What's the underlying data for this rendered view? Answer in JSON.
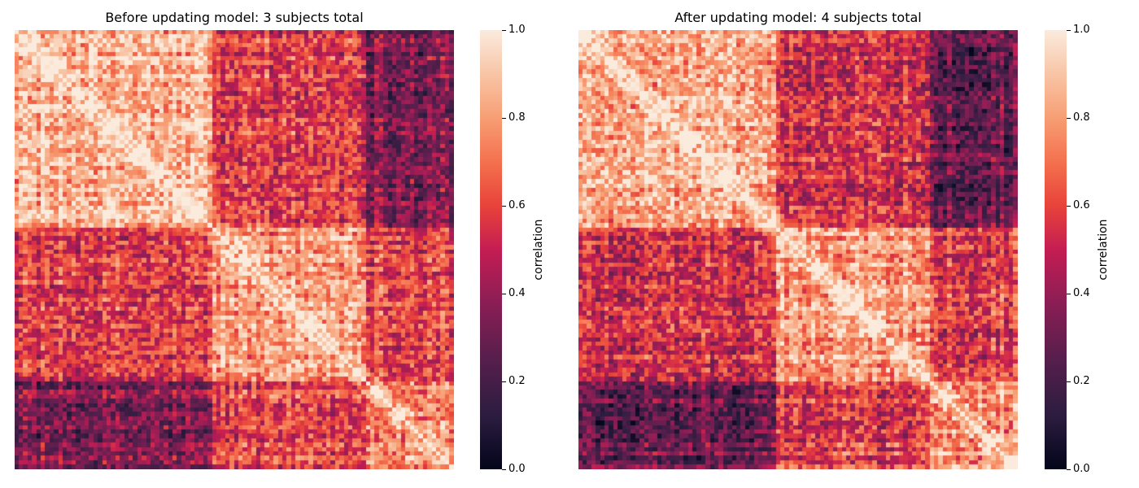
{
  "chart_data": [
    {
      "type": "heatmap",
      "title": "Before updating model: 3 subjects total",
      "colorbar_label": "correlation",
      "vmin": 0.0,
      "vmax": 1.0,
      "colorbar_ticks": [
        "0.0",
        "0.2",
        "0.4",
        "0.6",
        "0.8",
        "1.0"
      ],
      "n_rows": 100,
      "n_cols": 100,
      "diagonal_value": 1.0,
      "blocks": [
        {
          "rows": [
            0,
            45
          ],
          "cols": [
            0,
            45
          ],
          "mean_correlation": 0.85
        },
        {
          "rows": [
            45,
            80
          ],
          "cols": [
            45,
            80
          ],
          "mean_correlation": 0.8
        },
        {
          "rows": [
            80,
            100
          ],
          "cols": [
            80,
            100
          ],
          "mean_correlation": 0.78
        },
        {
          "rows": [
            0,
            45
          ],
          "cols": [
            45,
            80
          ],
          "mean_correlation": 0.58
        },
        {
          "rows": [
            0,
            45
          ],
          "cols": [
            80,
            100
          ],
          "mean_correlation": 0.35
        },
        {
          "rows": [
            45,
            80
          ],
          "cols": [
            80,
            100
          ],
          "mean_correlation": 0.6
        }
      ],
      "colormap": "rocket"
    },
    {
      "type": "heatmap",
      "title": "After updating model: 4 subjects total",
      "colorbar_label": "correlation",
      "vmin": 0.0,
      "vmax": 1.0,
      "colorbar_ticks": [
        "0.0",
        "0.2",
        "0.4",
        "0.6",
        "0.8",
        "1.0"
      ],
      "n_rows": 100,
      "n_cols": 100,
      "diagonal_value": 1.0,
      "blocks": [
        {
          "rows": [
            0,
            45
          ],
          "cols": [
            0,
            45
          ],
          "mean_correlation": 0.83
        },
        {
          "rows": [
            45,
            80
          ],
          "cols": [
            45,
            80
          ],
          "mean_correlation": 0.82
        },
        {
          "rows": [
            80,
            100
          ],
          "cols": [
            80,
            100
          ],
          "mean_correlation": 0.8
        },
        {
          "rows": [
            0,
            45
          ],
          "cols": [
            45,
            80
          ],
          "mean_correlation": 0.55
        },
        {
          "rows": [
            0,
            45
          ],
          "cols": [
            80,
            100
          ],
          "mean_correlation": 0.3
        },
        {
          "rows": [
            45,
            80
          ],
          "cols": [
            80,
            100
          ],
          "mean_correlation": 0.6
        }
      ],
      "colormap": "rocket"
    }
  ]
}
